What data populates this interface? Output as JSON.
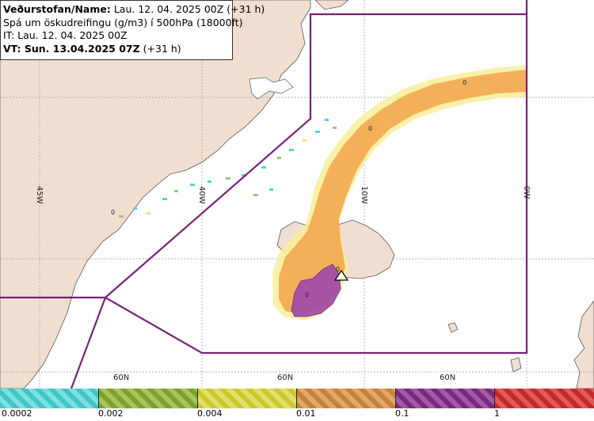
{
  "header": {
    "line1_label": "Veðurstofan/Name:",
    "line1_value": "Lau. 12. 04. 2025 00Z (+31 h)",
    "line2": "Spá um öskudreifingu (g/m3) í 500hPa (18000ft)",
    "line3": "IT: Lau. 12. 04. 2025 00Z",
    "line4_label": "VT: Sun. 13.04.2025 07Z",
    "line4_value": "(+31 h)"
  },
  "grid_labels": {
    "lon_45w": "45W",
    "lon_40w": "40W",
    "lon_10w": "10W",
    "lon_0w": "0W",
    "lat_60n_1": "60N",
    "lat_60n_2": "60N",
    "lat_60n_3": "60N"
  },
  "contour_labels": {
    "c1": "0",
    "c2": "0",
    "c3": "0",
    "c4": "0",
    "c5": "0"
  },
  "colors": {
    "land": "#f0dfd0",
    "sea": "#ffffff",
    "grid": "#9a9a9a",
    "boundary": "#7a1f7a",
    "ash_low": "#f2e27a",
    "ash_mid": "#f3a94f",
    "ash_high": "#a24da8",
    "ash_scatter_cyan": "#52d6d9",
    "ash_scatter_green": "#9cc97e"
  },
  "legend": {
    "ticks": [
      "0.0002",
      "0.002",
      "0.004",
      "0.01",
      "0.1",
      "1"
    ],
    "segments": [
      {
        "color": "#3fc7c7",
        "alt": "#7ee0e0"
      },
      {
        "color": "#7da02e",
        "alt": "#a8c45a"
      },
      {
        "color": "#c9c82c",
        "alt": "#e2e06a"
      },
      {
        "color": "#c8813a",
        "alt": "#e0a86b"
      },
      {
        "color": "#7a2a7e",
        "alt": "#a15aa6"
      },
      {
        "color": "#c42a2a",
        "alt": "#e05a5a"
      }
    ]
  },
  "volcano_icon": "warning-triangle-icon"
}
